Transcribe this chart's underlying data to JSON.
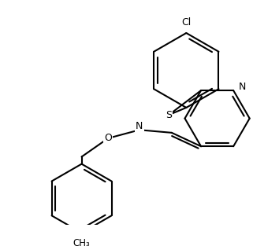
{
  "background": "#ffffff",
  "lc": "#000000",
  "lw": 1.5,
  "fs": 9,
  "figsize": [
    3.54,
    3.13
  ],
  "dpi": 100,
  "xlim": [
    0,
    354
  ],
  "ylim": [
    0,
    313
  ]
}
